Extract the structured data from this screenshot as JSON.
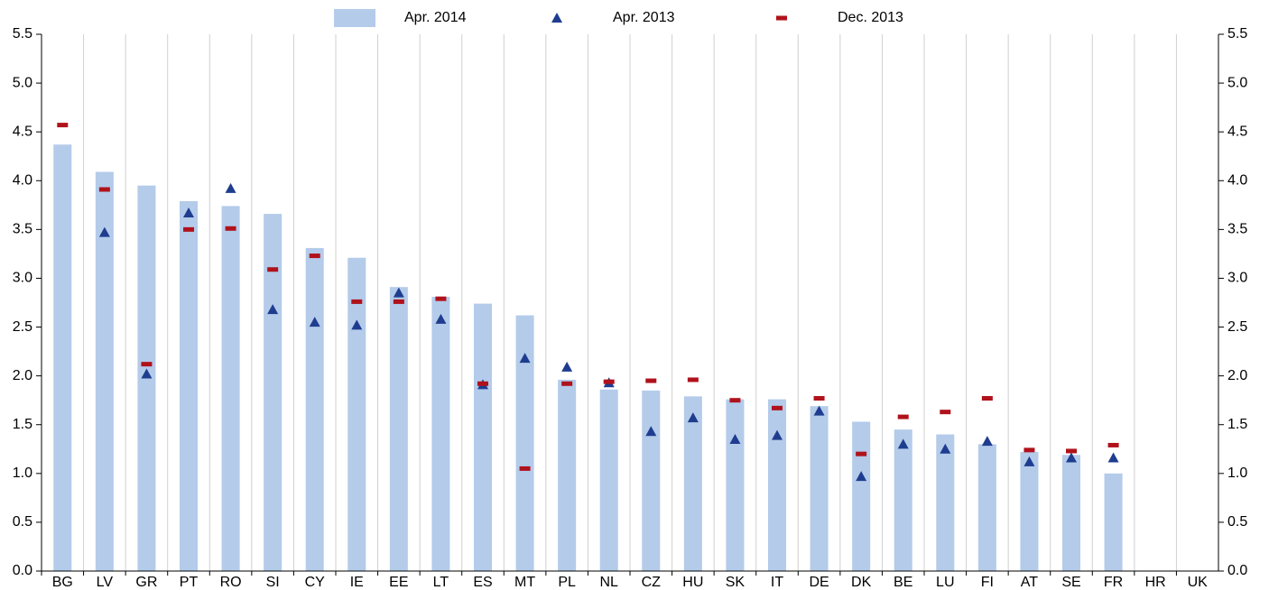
{
  "chart_data": {
    "type": "bar",
    "categories": [
      "BG",
      "LV",
      "GR",
      "PT",
      "RO",
      "SI",
      "CY",
      "IE",
      "EE",
      "LT",
      "ES",
      "MT",
      "PL",
      "NL",
      "CZ",
      "HU",
      "SK",
      "IT",
      "DE",
      "DK",
      "BE",
      "LU",
      "FI",
      "AT",
      "SE",
      "FR",
      "HR",
      "UK"
    ],
    "series": [
      {
        "name": "Apr. 2014",
        "kind": "bar",
        "color": "#b4cbea",
        "values": [
          4.37,
          4.09,
          3.95,
          3.79,
          3.74,
          3.66,
          3.31,
          3.21,
          2.91,
          2.81,
          2.74,
          2.62,
          1.96,
          1.86,
          1.85,
          1.79,
          1.76,
          1.76,
          1.69,
          1.53,
          1.45,
          1.4,
          1.3,
          1.22,
          1.19,
          1.0,
          null,
          null
        ]
      },
      {
        "name": "Apr. 2013",
        "kind": "triangle",
        "color": "#1f3d8f",
        "values": [
          null,
          3.47,
          2.02,
          3.67,
          3.92,
          2.68,
          2.55,
          2.52,
          2.85,
          2.58,
          1.91,
          2.18,
          2.09,
          1.93,
          1.43,
          1.57,
          1.35,
          1.39,
          1.64,
          0.97,
          1.3,
          1.25,
          1.33,
          1.12,
          1.16,
          1.16,
          null,
          null
        ]
      },
      {
        "name": "Dec. 2013",
        "kind": "dash",
        "color": "#b0121b",
        "values": [
          4.57,
          3.91,
          2.12,
          3.5,
          3.51,
          3.09,
          3.23,
          2.76,
          2.76,
          2.79,
          1.92,
          1.05,
          1.92,
          1.94,
          1.95,
          1.96,
          1.75,
          1.67,
          1.77,
          1.2,
          1.58,
          1.63,
          1.77,
          1.24,
          1.23,
          1.29,
          null,
          null
        ]
      }
    ],
    "ylim": [
      0,
      5.5
    ],
    "yticks": [
      {
        "value": 0,
        "label": "0.0"
      },
      0.5,
      {
        "value": 1,
        "label": "1.0"
      },
      1.5,
      {
        "value": 2,
        "label": "2.0"
      },
      2.5,
      {
        "value": 3,
        "label": "3.0"
      },
      3.5,
      {
        "value": 4,
        "label": "4.0"
      },
      4.5,
      {
        "value": 5,
        "label": "5.0"
      },
      5.5
    ],
    "grid": true
  }
}
